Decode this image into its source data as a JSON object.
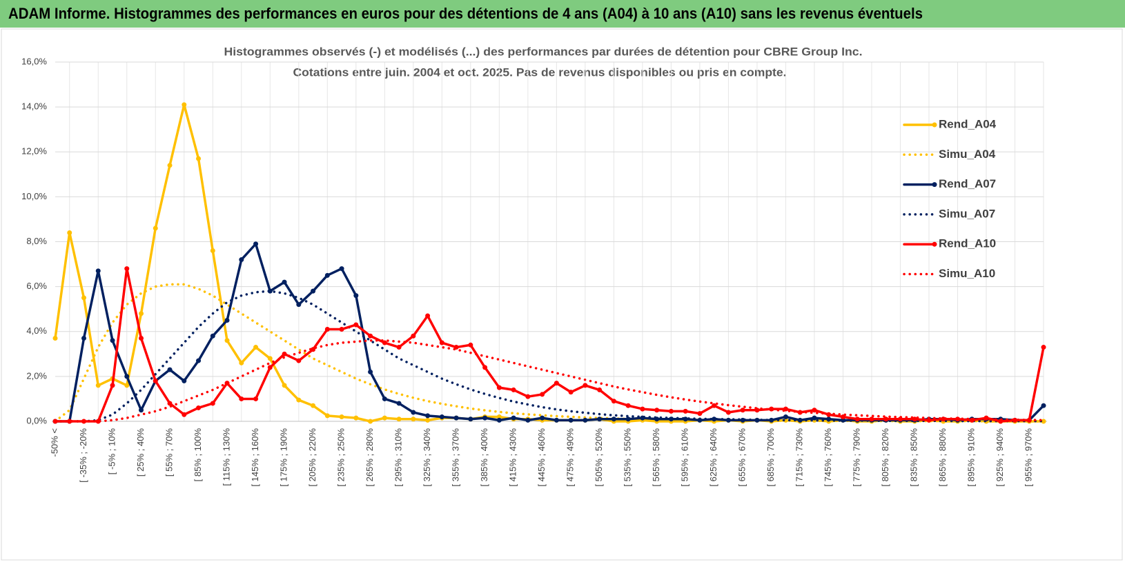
{
  "chart_data": {
    "type": "line",
    "header": "ADAM Informe. Histogrammes des performances en euros pour des détentions de 4 ans (A04) à 10 ans (A10) sans les revenus éventuels",
    "title": [
      "Histogrammes observés (-) et modélisés (...) des performances par durées de détention pour CBRE Group Inc.",
      "Cotations entre juin. 2004 et oct. 2025. Pas de revenus disponibles ou pris en compte."
    ],
    "categories": [
      "-50% <",
      null,
      "[ -35% ; -20%",
      null,
      "[ -5% ; 10%",
      null,
      "[ 25% ; 40%",
      null,
      "[ 55% ; 70%",
      null,
      "[ 85% ; 100%",
      null,
      "[ 115% ; 130%",
      null,
      "[ 145% ; 160%",
      null,
      "[ 175% ; 190%",
      null,
      "[ 205% ; 220%",
      null,
      "[ 235% ; 250%",
      null,
      "[ 265% ; 280%",
      null,
      "[ 295% ; 310%",
      null,
      "[ 325% ; 340%",
      null,
      "[ 355% ; 370%",
      null,
      "[ 385% ; 400%",
      null,
      "[ 415% ; 430%",
      null,
      "[ 445% ; 460%",
      null,
      "[ 475% ; 490%",
      null,
      "[ 505% ; 520%",
      null,
      "[ 535% ; 550%",
      null,
      "[ 565% ; 580%",
      null,
      "[ 595% ; 610%",
      null,
      "[ 625% ; 640%",
      null,
      "[ 655% ; 670%",
      null,
      "[ 685% ; 700%",
      null,
      "[ 715% ; 730%",
      null,
      "[ 745% ; 760%",
      null,
      "[ 775% ; 790%",
      null,
      "[ 805% ; 820%",
      null,
      "[ 835% ; 850%",
      null,
      "[ 865% ; 880%",
      null,
      "[ 895% ; 910%",
      null,
      "[ 925% ; 940%",
      null,
      "[ 955% ; 970%",
      null
    ],
    "series": [
      {
        "name": "Rend_A04",
        "color": "#ffc000",
        "style": "solid",
        "values": [
          3.7,
          8.4,
          5.5,
          1.6,
          1.9,
          1.6,
          4.8,
          8.6,
          11.4,
          14.1,
          11.7,
          7.6,
          3.6,
          2.6,
          3.3,
          2.8,
          1.6,
          0.95,
          0.7,
          0.25,
          0.2,
          0.15,
          0,
          0.15,
          0.1,
          0.1,
          0.05,
          0.15,
          0.15,
          0.1,
          0.2,
          0.2,
          0.1,
          0.1,
          0.05,
          0.05,
          0.05,
          0.05,
          0.1,
          0,
          0,
          0.05,
          0,
          0,
          0,
          0.05,
          0,
          0.05,
          0,
          0.05,
          0,
          0.05,
          0,
          0.05,
          0,
          0.05,
          0,
          0,
          0.05,
          0,
          0,
          0.05,
          0,
          0,
          0.05,
          0,
          0,
          0,
          0,
          0
        ]
      },
      {
        "name": "Simu_A04",
        "color": "#ffc000",
        "style": "dotted",
        "values": [
          0,
          0.5,
          1.9,
          3.3,
          4.4,
          5.2,
          5.7,
          6.0,
          6.1,
          6.1,
          5.9,
          5.6,
          5.2,
          4.8,
          4.4,
          4.0,
          3.6,
          3.2,
          2.8,
          2.5,
          2.2,
          1.9,
          1.65,
          1.42,
          1.22,
          1.05,
          0.9,
          0.78,
          0.67,
          0.57,
          0.49,
          0.42,
          0.36,
          0.31,
          0.27,
          0.23,
          0.2,
          0.17,
          0.15,
          0.13,
          0.11,
          0.1,
          0.09,
          0.08,
          0.07,
          0.06,
          0.05,
          0.05,
          0.04,
          0.04,
          0.03,
          0.03,
          0.03,
          0.02,
          0.02,
          0.02,
          0.02,
          0.01,
          0.01,
          0.01,
          0.01,
          0.01,
          0.01,
          0.01,
          0.01,
          0,
          0,
          0,
          0,
          0
        ]
      },
      {
        "name": "Rend_A07",
        "color": "#002060",
        "style": "solid",
        "values": [
          0,
          0,
          3.7,
          6.7,
          3.6,
          2.0,
          0.5,
          1.8,
          2.3,
          1.8,
          2.7,
          3.8,
          4.5,
          7.2,
          7.9,
          5.8,
          6.2,
          5.2,
          5.8,
          6.5,
          6.8,
          5.6,
          2.2,
          1.0,
          0.8,
          0.4,
          0.25,
          0.2,
          0.15,
          0.1,
          0.15,
          0.05,
          0.15,
          0.05,
          0.15,
          0.05,
          0.05,
          0.05,
          0.1,
          0.1,
          0.1,
          0.15,
          0.1,
          0.1,
          0.1,
          0.05,
          0.1,
          0.05,
          0.05,
          0.05,
          0.05,
          0.2,
          0.05,
          0.15,
          0.1,
          0.05,
          0.05,
          0.05,
          0.05,
          0.05,
          0.05,
          0.1,
          0.1,
          0.05,
          0.1,
          0.1,
          0.1,
          0.05,
          0.05,
          0.7
        ]
      },
      {
        "name": "Simu_A07",
        "color": "#002060",
        "style": "dotted",
        "values": [
          0,
          0,
          0,
          0.05,
          0.3,
          0.8,
          1.4,
          2.1,
          2.8,
          3.5,
          4.2,
          4.8,
          5.3,
          5.6,
          5.75,
          5.8,
          5.7,
          5.5,
          5.2,
          4.8,
          4.4,
          4.0,
          3.6,
          3.2,
          2.8,
          2.5,
          2.2,
          1.9,
          1.65,
          1.42,
          1.22,
          1.04,
          0.88,
          0.75,
          0.63,
          0.53,
          0.45,
          0.38,
          0.32,
          0.27,
          0.23,
          0.2,
          0.17,
          0.15,
          0.13,
          0.11,
          0.1,
          0.09,
          0.08,
          0.07,
          0.06,
          0.05,
          0.05,
          0.04,
          0.04,
          0.03,
          0.03,
          0.03,
          0.02,
          0.02,
          0.02,
          0.02,
          0.02,
          0.01,
          0.01,
          0.01,
          0.01,
          0.01,
          0.01,
          0.01
        ]
      },
      {
        "name": "Rend_A10",
        "color": "#ff0000",
        "style": "solid",
        "values": [
          0,
          0,
          0,
          0,
          1.6,
          6.8,
          3.7,
          1.8,
          0.8,
          0.3,
          0.6,
          0.8,
          1.7,
          1.0,
          1.0,
          2.4,
          3.0,
          2.7,
          3.2,
          4.1,
          4.1,
          4.3,
          3.8,
          3.5,
          3.3,
          3.8,
          4.7,
          3.5,
          3.3,
          3.4,
          2.4,
          1.5,
          1.4,
          1.1,
          1.2,
          1.7,
          1.3,
          1.6,
          1.4,
          0.9,
          0.7,
          0.55,
          0.5,
          0.45,
          0.45,
          0.35,
          0.7,
          0.4,
          0.5,
          0.5,
          0.55,
          0.55,
          0.4,
          0.5,
          0.3,
          0.2,
          0.1,
          0.1,
          0.1,
          0.1,
          0.1,
          0.05,
          0.1,
          0.1,
          0.05,
          0.15,
          0,
          0.05,
          0.05,
          3.3
        ]
      },
      {
        "name": "Simu_A10",
        "color": "#ff0000",
        "style": "dotted",
        "values": [
          0,
          0,
          0,
          0,
          0.05,
          0.15,
          0.3,
          0.45,
          0.65,
          0.9,
          1.15,
          1.4,
          1.7,
          2.0,
          2.3,
          2.6,
          2.85,
          3.05,
          3.25,
          3.4,
          3.5,
          3.55,
          3.6,
          3.6,
          3.55,
          3.5,
          3.4,
          3.3,
          3.2,
          3.05,
          2.9,
          2.75,
          2.6,
          2.45,
          2.3,
          2.15,
          2.0,
          1.85,
          1.7,
          1.55,
          1.42,
          1.3,
          1.18,
          1.07,
          0.97,
          0.88,
          0.8,
          0.72,
          0.65,
          0.58,
          0.52,
          0.47,
          0.42,
          0.38,
          0.34,
          0.3,
          0.27,
          0.24,
          0.21,
          0.19,
          0.17,
          0.15,
          0.13,
          0.12,
          0.1,
          0.09,
          0.08,
          0.07,
          0.06,
          0.05
        ]
      }
    ],
    "ylim": [
      0,
      16
    ],
    "yticks": [
      {
        "value": 0,
        "label": "0,0%"
      },
      {
        "value": 2,
        "label": "2,0%"
      },
      {
        "value": 4,
        "label": "4,0%"
      },
      {
        "value": 6,
        "label": "6,0%"
      },
      {
        "value": 8,
        "label": "8,0%"
      },
      {
        "value": 10,
        "label": "10,0%"
      },
      {
        "value": 12,
        "label": "12,0%"
      },
      {
        "value": 14,
        "label": "14,0%"
      },
      {
        "value": 16,
        "label": "16,0%"
      }
    ],
    "grid": true,
    "legend": "right"
  }
}
